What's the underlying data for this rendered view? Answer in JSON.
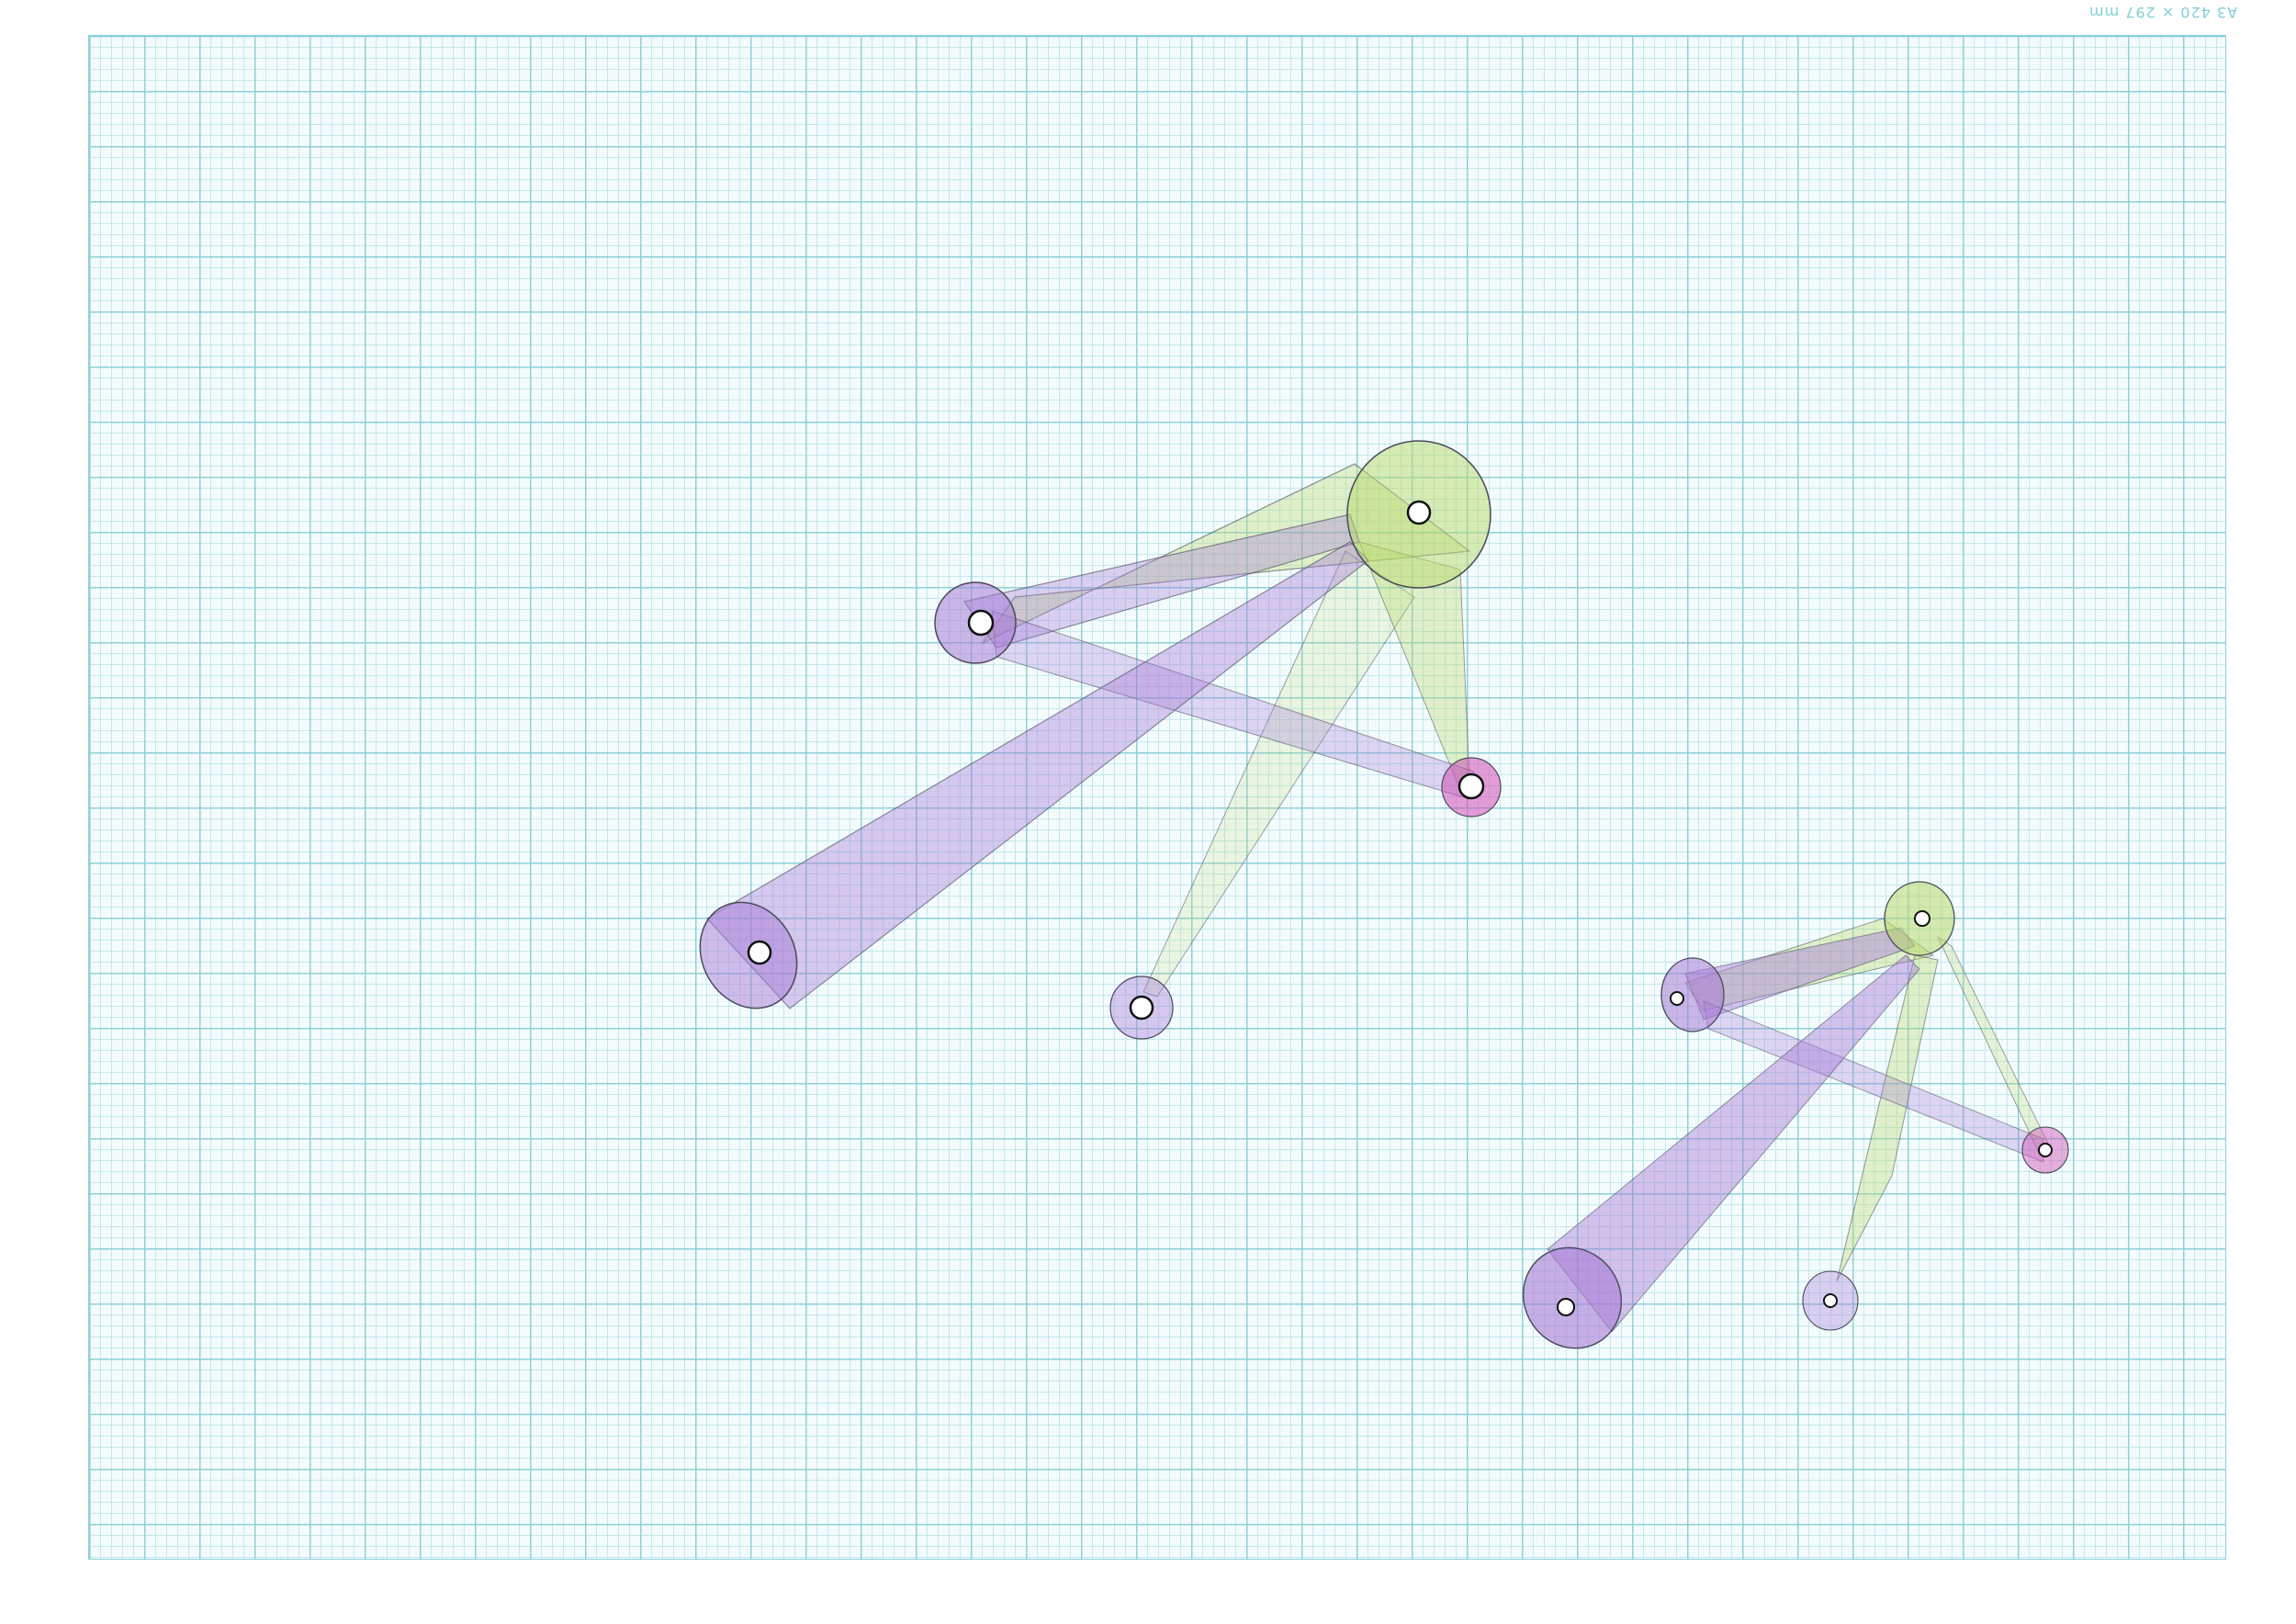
{
  "sheet": {
    "corner_label": "A3 420 × 297 mm"
  },
  "colors": {
    "grid_major": "#8fd0d8",
    "grid_minor": "#c4e8ec",
    "paper": "#f4fbfc",
    "purple_fill": "#a77bd6",
    "green_fill": "#b7d96a",
    "magenta_fill": "#d24fb6",
    "pencil": "#4a4a5a"
  },
  "drawing": {
    "groups": [
      "large-figure",
      "small-figure"
    ]
  }
}
